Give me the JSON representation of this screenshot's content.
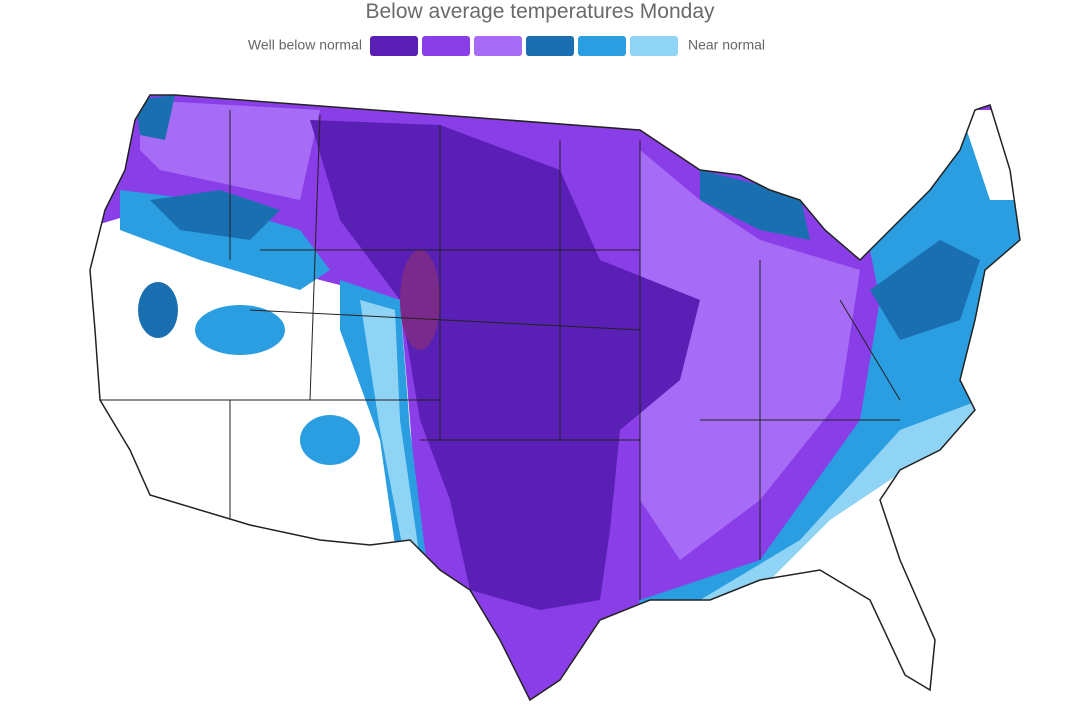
{
  "header": {
    "title": "Below average temperatures Monday"
  },
  "legend": {
    "low_label": "Well below normal",
    "high_label": "Near normal",
    "colors": [
      "#5a1fb5",
      "#8a3ee8",
      "#a66cf5",
      "#1a6fb0",
      "#2a9ee0",
      "#8fd3f5"
    ]
  }
}
